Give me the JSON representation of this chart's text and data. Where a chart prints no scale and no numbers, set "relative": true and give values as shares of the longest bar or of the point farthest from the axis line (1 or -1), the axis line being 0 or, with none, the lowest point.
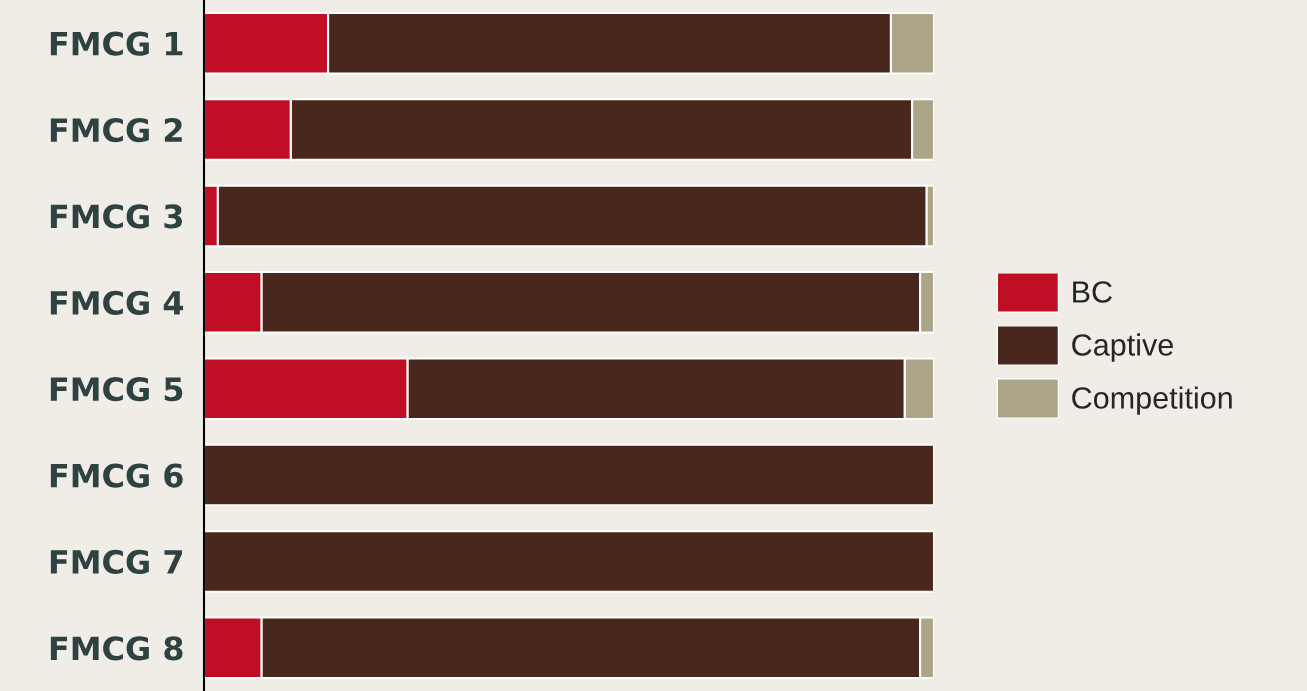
{
  "chart_data": {
    "type": "bar",
    "orientation": "horizontal",
    "stacked": true,
    "relative": true,
    "categories": [
      "FMCG 1",
      "FMCG 2",
      "FMCG 3",
      "FMCG 4",
      "FMCG 5",
      "FMCG 6",
      "FMCG 7",
      "FMCG 8"
    ],
    "series": [
      {
        "name": "BC",
        "color": "#c00f24",
        "values": [
          0.17,
          0.119,
          0.019,
          0.079,
          0.279,
          0,
          0,
          0.079
        ]
      },
      {
        "name": "Captive",
        "color": "#4a271d",
        "values": [
          0.771,
          0.851,
          0.971,
          0.902,
          0.681,
          1,
          1,
          0.902
        ]
      },
      {
        "name": "Competition",
        "color": "#aca587",
        "values": [
          0.059,
          0.03,
          0.01,
          0.019,
          0.04,
          0,
          0,
          0.019
        ]
      }
    ],
    "legend": "right",
    "tick_labels": "y"
  }
}
